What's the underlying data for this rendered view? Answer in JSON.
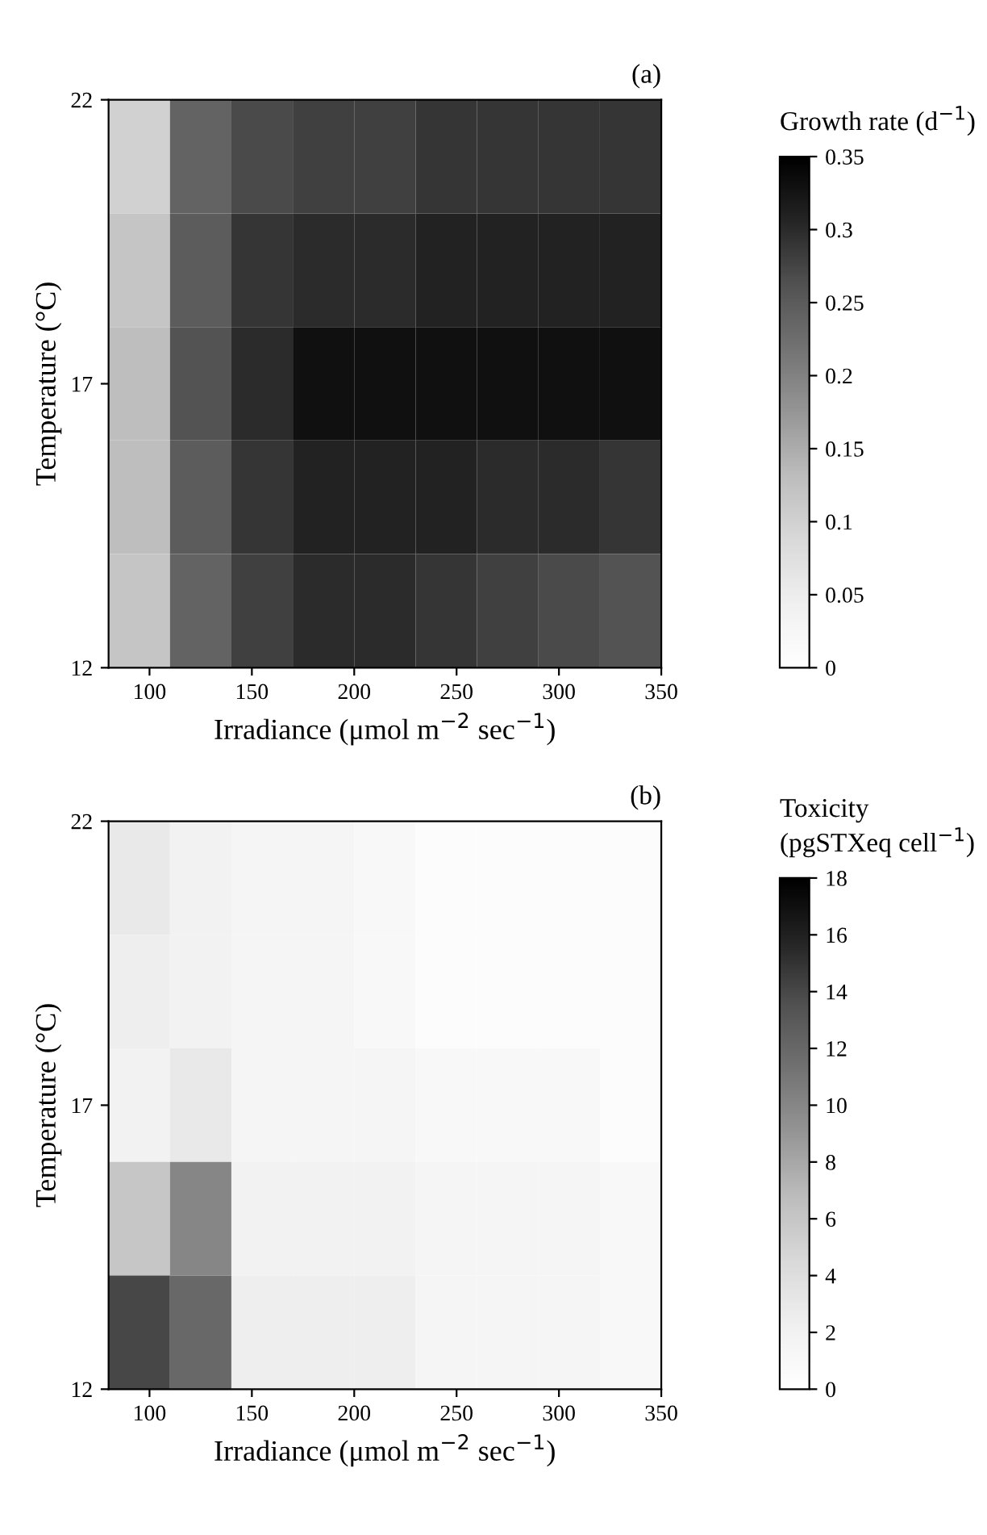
{
  "chart_data": [
    {
      "type": "heatmap",
      "annotations": [
        "(a)"
      ],
      "xlabel": "Irradiance (μmol m$^{−2}$ sec$^{−1}$)",
      "ylabel": "Temperature (°C)",
      "clabel": "Growth rate (d$^{−1}$)",
      "x": [
        95,
        125,
        155,
        185,
        215,
        245,
        275,
        305,
        335
      ],
      "y": [
        21,
        19,
        17,
        15,
        13
      ],
      "cells": [
        [
          0.1,
          0.24,
          0.27,
          0.28,
          0.28,
          0.29,
          0.29,
          0.29,
          0.29
        ],
        [
          0.12,
          0.25,
          0.29,
          0.3,
          0.3,
          0.31,
          0.31,
          0.31,
          0.31
        ],
        [
          0.13,
          0.26,
          0.3,
          0.33,
          0.33,
          0.33,
          0.33,
          0.33,
          0.33
        ],
        [
          0.13,
          0.25,
          0.29,
          0.31,
          0.31,
          0.31,
          0.3,
          0.3,
          0.29
        ],
        [
          0.12,
          0.24,
          0.28,
          0.3,
          0.3,
          0.29,
          0.28,
          0.27,
          0.26
        ]
      ],
      "xlim": [
        80,
        350
      ],
      "xticks": [
        100,
        150,
        200,
        250,
        300,
        350
      ],
      "ylim": [
        12,
        22
      ],
      "yticks": [
        12,
        17,
        22
      ],
      "clim": [
        0,
        0.35
      ],
      "cticks": [
        0,
        0.05,
        0.1,
        0.15,
        0.2,
        0.25,
        0.3,
        0.35
      ]
    },
    {
      "type": "heatmap",
      "annotations": [
        "(b)"
      ],
      "xlabel": "Irradiance (μmol m$^{−2}$ sec$^{−1}$)",
      "ylabel": "Temperature (°C)",
      "clabel": "Toxicity\n(pgSTXeq cell$^{−1}$)",
      "x": [
        95,
        125,
        155,
        185,
        215,
        245,
        275,
        305,
        335
      ],
      "y": [
        21,
        19,
        17,
        15,
        13
      ],
      "cells": [
        [
          3,
          2,
          1.5,
          1.5,
          1,
          0.5,
          0.5,
          0.5,
          0.5
        ],
        [
          2.5,
          2,
          1.5,
          1.5,
          1,
          0.5,
          0.5,
          0.5,
          0.5
        ],
        [
          2,
          3,
          1.5,
          1.5,
          1.5,
          1,
          1,
          1,
          0.5
        ],
        [
          6,
          10,
          2,
          2,
          2,
          1.5,
          1.5,
          1.5,
          1
        ],
        [
          14,
          12,
          2.5,
          2.5,
          2.5,
          1.5,
          1.5,
          1.5,
          1
        ]
      ],
      "xlim": [
        80,
        350
      ],
      "xticks": [
        100,
        150,
        200,
        250,
        300,
        350
      ],
      "ylim": [
        12,
        22
      ],
      "yticks": [
        12,
        17,
        22
      ],
      "clim": [
        0,
        18
      ],
      "cticks": [
        0,
        2,
        4,
        6,
        8,
        10,
        12,
        14,
        16,
        18
      ]
    }
  ]
}
